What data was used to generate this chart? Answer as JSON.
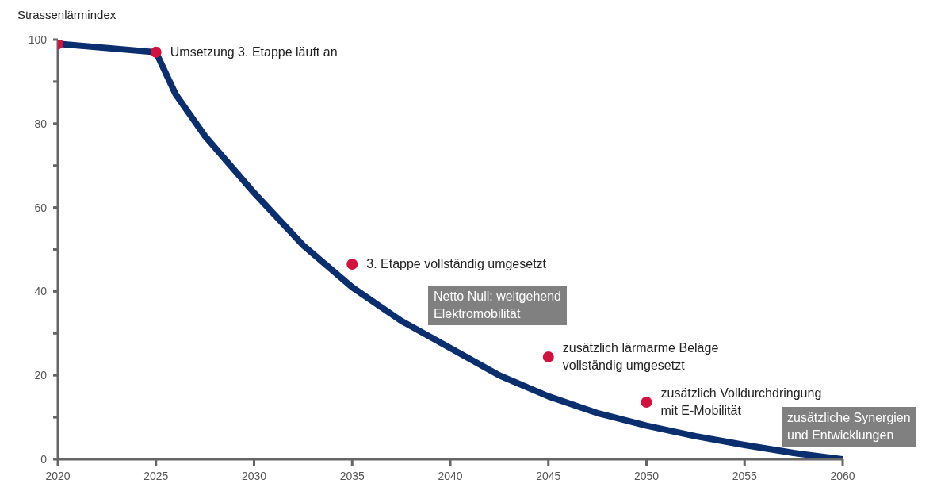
{
  "chart_data": {
    "type": "line",
    "ylabel": "Strassenlärmindex",
    "xlim": [
      2020,
      2060
    ],
    "xticks": [
      2020,
      2025,
      2030,
      2035,
      2040,
      2045,
      2050,
      2055,
      2060
    ],
    "ylim": [
      0,
      100
    ],
    "yticks": [
      0,
      {
        "value": 10,
        "label": null
      },
      20,
      {
        "value": 30,
        "label": null
      },
      40,
      {
        "value": 50,
        "label": null
      },
      60,
      {
        "value": 70,
        "label": null
      },
      80,
      {
        "value": 90,
        "label": null
      },
      100
    ],
    "grid": false,
    "series": [
      {
        "color": "#0b2f6e",
        "marker": "none",
        "x": [
          2020,
          2025,
          2026,
          2027.5,
          2030,
          2032.5,
          2035,
          2037.5,
          2040,
          2042.5,
          2045,
          2047.5,
          2050,
          2052.5,
          2055,
          2057.5,
          2060
        ],
        "values": [
          99,
          97,
          87,
          77,
          63.5,
          51,
          41,
          33,
          26.5,
          20,
          15,
          11,
          8,
          5.5,
          3.4,
          1.5,
          0
        ]
      },
      {
        "type": "scatter",
        "color": "#d4103c",
        "marker": "circle",
        "x": [
          2020,
          2025,
          2035,
          2045,
          2050
        ],
        "values": [
          99,
          97,
          46.5,
          24.4,
          13.6
        ]
      }
    ],
    "annotations": [
      {
        "text": "Umsetzung 3. Etappe läuft an",
        "x": 2025,
        "y": 97
      },
      {
        "text": "3. Etappe vollständig umgesetzt",
        "x": 2035,
        "y": 46.5
      },
      {
        "text": "zusätzlich lärmarme Beläge\nvollständig umgesetzt",
        "x": 2045,
        "y": 24.4
      },
      {
        "text": "zusätzlich Volldurchdringung\nmit E-Mobilität",
        "x": 2050,
        "y": 13.6
      },
      "Netto Null: weitgehend\nElektromobilität",
      "zusätzliche Synergien\nund Entwicklungen"
    ]
  }
}
